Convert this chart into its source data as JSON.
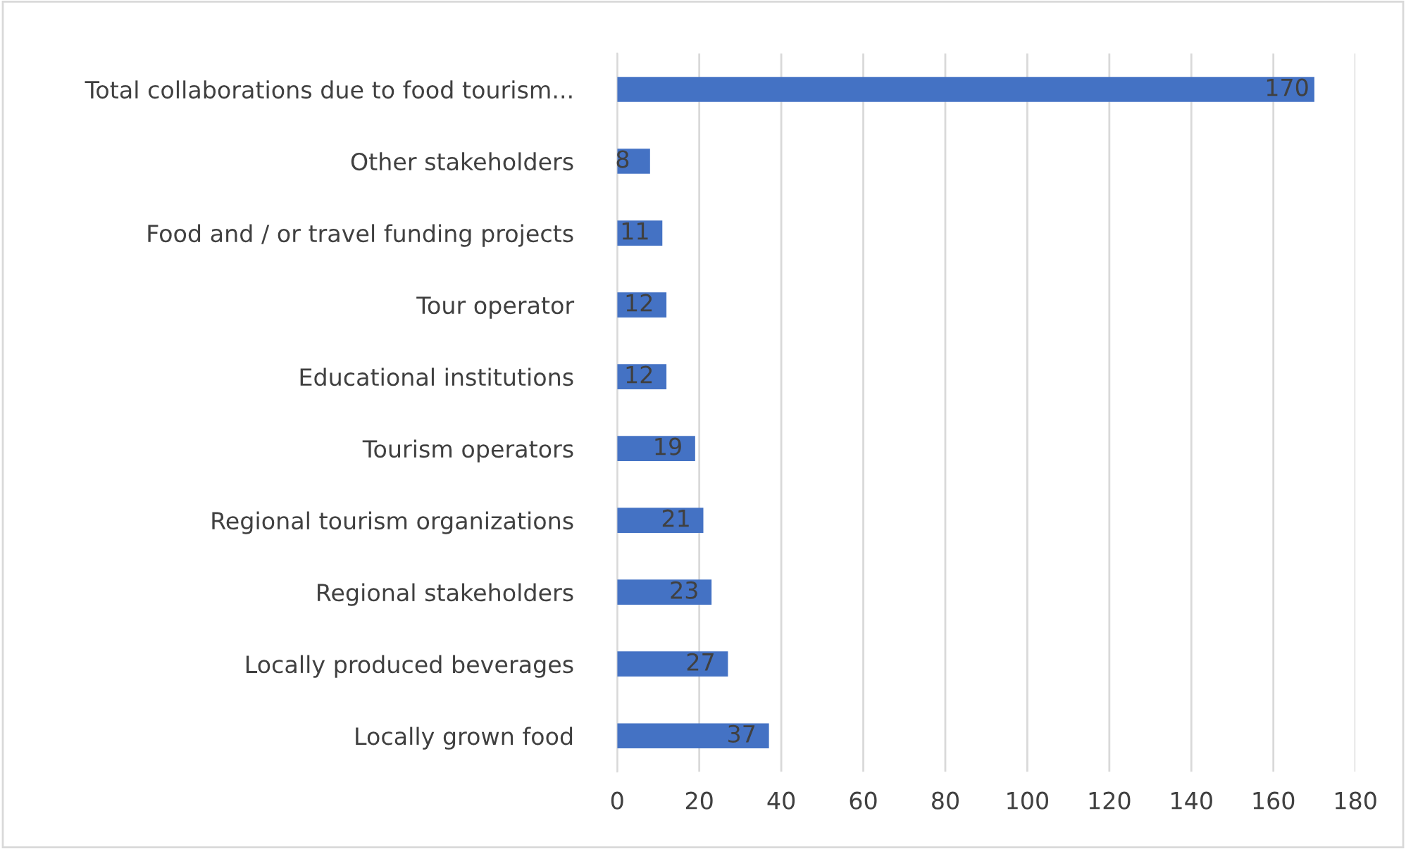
{
  "chart_data": {
    "type": "bar",
    "orientation": "horizontal",
    "categories": [
      "Total collaborations due to food tourism...",
      "Other stakeholders",
      "Food and / or travel funding projects",
      "Tour operator",
      "Educational institutions",
      "Tourism operators",
      "Regional tourism organizations",
      "Regional stakeholders",
      "Locally produced beverages",
      "Locally grown food"
    ],
    "values": [
      170,
      8,
      11,
      12,
      12,
      19,
      21,
      23,
      27,
      37
    ],
    "color": "#4472c4",
    "xlim": [
      0,
      180
    ],
    "xticks": [
      0,
      20,
      40,
      60,
      80,
      100,
      120,
      140,
      160,
      180
    ],
    "grid": "x",
    "data_labels": true,
    "legend": false
  }
}
